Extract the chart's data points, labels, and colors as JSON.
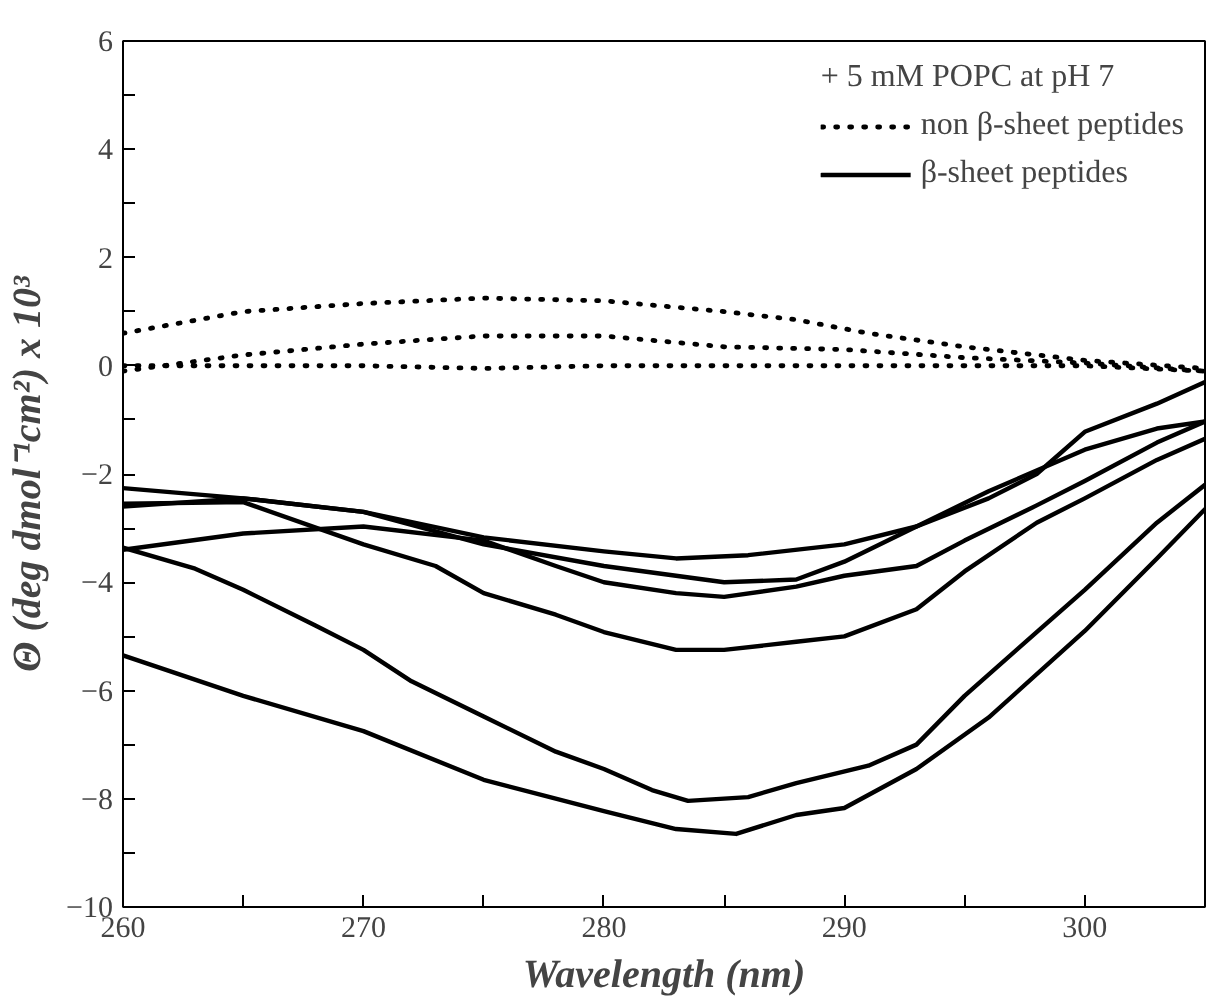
{
  "chart_data": {
    "type": "line",
    "xlabel": "Wavelength (nm)",
    "ylabel": "Θ (deg dmol⁻¹cm²) x 10³",
    "legend_title": "+ 5 mM POPC at pH 7",
    "legend": "top right",
    "grid": false,
    "xlim": [
      260,
      305
    ],
    "ylim": [
      -10,
      6
    ],
    "xticks": [
      260,
      {
        "value": 265,
        "label": null
      },
      270,
      {
        "value": 275,
        "label": null
      },
      280,
      {
        "value": 285,
        "label": null
      },
      290,
      {
        "value": 295,
        "label": null
      },
      300
    ],
    "yticks": [
      -10,
      {
        "value": -9,
        "label": null
      },
      -8,
      {
        "value": -7,
        "label": null
      },
      -6,
      {
        "value": -5,
        "label": null
      },
      -4,
      {
        "value": -3,
        "label": null
      },
      -2,
      {
        "value": -1,
        "label": null
      },
      0,
      {
        "value": 1,
        "label": null
      },
      2,
      {
        "value": 3,
        "label": null
      },
      4,
      {
        "value": 5,
        "label": null
      },
      6
    ],
    "series": [
      {
        "name": "non β-sheet peptides",
        "color": "#000000",
        "line_style": "dotted",
        "x": [
          260,
          265,
          270,
          275,
          280,
          285,
          288,
          291,
          295,
          300,
          305
        ],
        "values": [
          0.6,
          1.0,
          1.15,
          1.25,
          1.2,
          1.0,
          0.85,
          0.6,
          0.35,
          0.1,
          -0.05
        ]
      },
      {
        "color": "#000000",
        "line_style": "dotted",
        "x": [
          260,
          265,
          270,
          275,
          280,
          285,
          290,
          295,
          300,
          305
        ],
        "values": [
          -0.1,
          0.2,
          0.4,
          0.55,
          0.55,
          0.35,
          0.3,
          0.15,
          0.05,
          -0.1
        ]
      },
      {
        "color": "#000000",
        "line_style": "dotted",
        "x": [
          260,
          265,
          270,
          275,
          280,
          285,
          290,
          295,
          300,
          305
        ],
        "values": [
          0.0,
          0.0,
          0.0,
          -0.05,
          0.0,
          0.0,
          0.0,
          0.0,
          0.0,
          -0.1
        ]
      },
      {
        "name": "β-sheet peptides",
        "color": "#000000",
        "line_style": "solid",
        "x": [
          260,
          265,
          270,
          275,
          280,
          283,
          285.5,
          288,
          290,
          293,
          296,
          300,
          303,
          305
        ],
        "values": [
          -5.35,
          -6.1,
          -6.75,
          -7.65,
          -8.23,
          -8.56,
          -8.65,
          -8.3,
          -8.17,
          -7.45,
          -6.5,
          -4.9,
          -3.56,
          -2.65
        ]
      },
      {
        "color": "#000000",
        "line_style": "solid",
        "x": [
          260,
          263,
          265,
          268,
          270,
          272,
          275,
          278,
          280,
          282,
          283.5,
          286,
          288,
          291,
          293,
          295,
          298,
          300,
          303,
          305
        ],
        "values": [
          -3.36,
          -3.75,
          -4.14,
          -4.8,
          -5.25,
          -5.83,
          -6.48,
          -7.13,
          -7.45,
          -7.84,
          -8.04,
          -7.97,
          -7.71,
          -7.39,
          -7.0,
          -6.1,
          -4.92,
          -4.14,
          -2.9,
          -2.2
        ]
      },
      {
        "color": "#000000",
        "line_style": "solid",
        "x": [
          260,
          265,
          270,
          273,
          275,
          278,
          280,
          283,
          285,
          288,
          290,
          293,
          295,
          298,
          300,
          303,
          305
        ],
        "values": [
          -2.55,
          -2.52,
          -3.3,
          -3.7,
          -4.2,
          -4.6,
          -4.92,
          -5.25,
          -5.25,
          -5.1,
          -5.0,
          -4.5,
          -3.8,
          -2.9,
          -2.45,
          -1.74,
          -1.35
        ]
      },
      {
        "color": "#000000",
        "line_style": "solid",
        "x": [
          260,
          265,
          270,
          275,
          278,
          280,
          283,
          285,
          288,
          290,
          293,
          295,
          298,
          300,
          303,
          305
        ],
        "values": [
          -3.4,
          -3.1,
          -2.97,
          -3.23,
          -3.7,
          -4.0,
          -4.2,
          -4.27,
          -4.08,
          -3.88,
          -3.7,
          -3.23,
          -2.58,
          -2.13,
          -1.42,
          -1.03
        ]
      },
      {
        "color": "#000000",
        "line_style": "solid",
        "x": [
          260,
          265,
          270,
          275,
          280,
          285,
          288,
          290,
          293,
          296,
          300,
          303,
          305
        ],
        "values": [
          -2.6,
          -2.45,
          -2.7,
          -3.3,
          -3.7,
          -4.0,
          -3.95,
          -3.62,
          -2.97,
          -2.32,
          -1.55,
          -1.16,
          -1.03
        ]
      },
      {
        "color": "#000000",
        "line_style": "solid",
        "x": [
          260,
          265,
          270,
          275,
          280,
          283,
          286,
          290,
          293,
          296,
          298,
          300,
          303,
          305
        ],
        "values": [
          -2.26,
          -2.45,
          -2.7,
          -3.17,
          -3.43,
          -3.56,
          -3.5,
          -3.3,
          -2.97,
          -2.45,
          -2.0,
          -1.22,
          -0.7,
          -0.3
        ]
      }
    ]
  }
}
